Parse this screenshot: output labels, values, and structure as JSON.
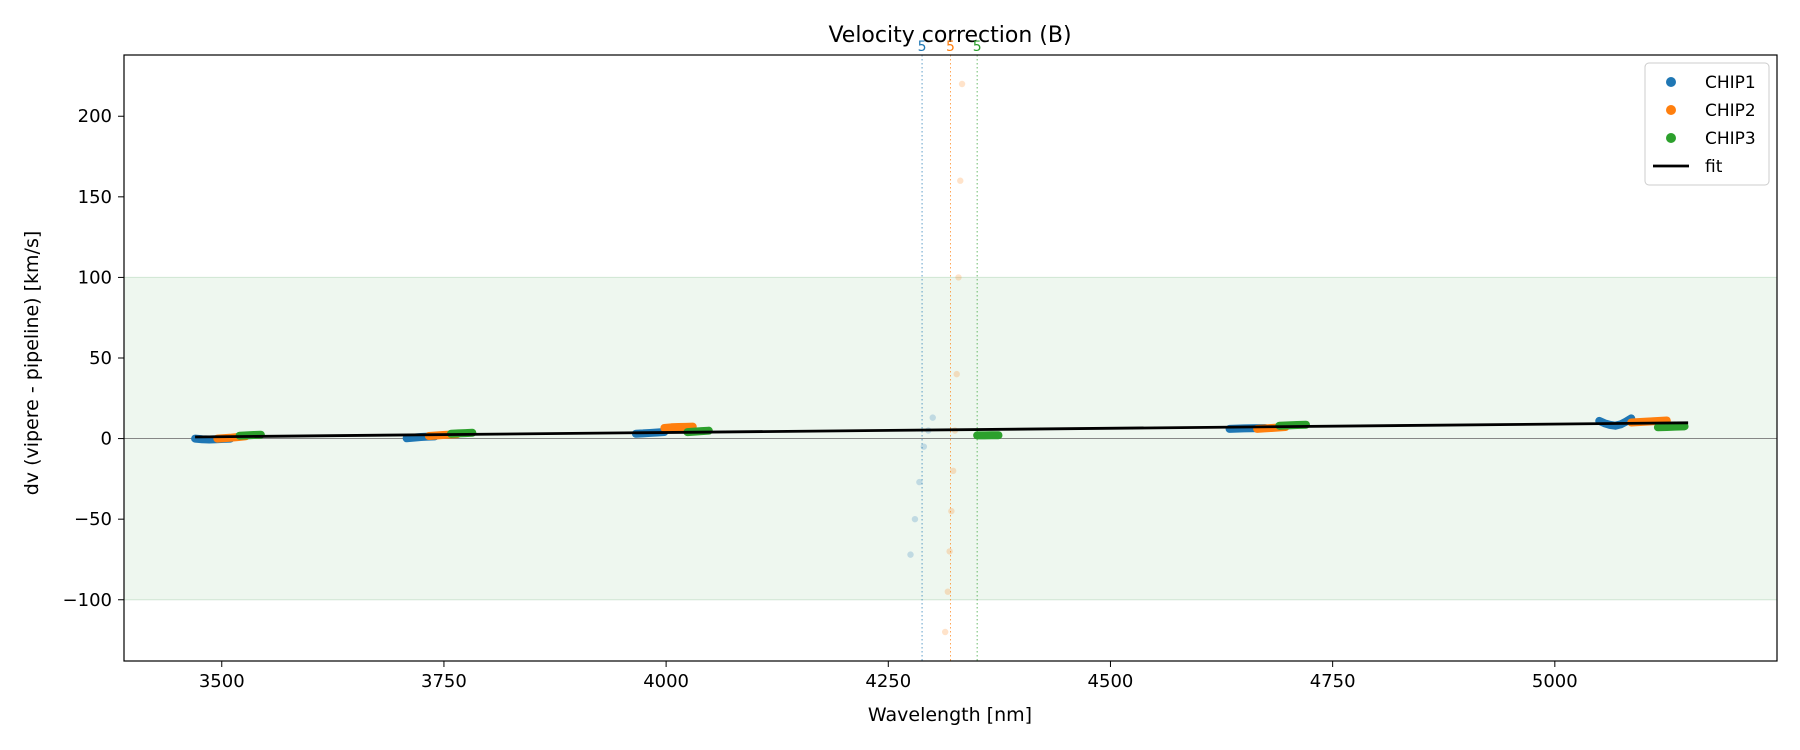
{
  "chart_data": {
    "type": "scatter",
    "title": "Velocity correction (B)",
    "xlabel": "Wavelength [nm]",
    "ylabel": "dv (vipere - pipeline) [km/s]",
    "xlim": [
      3390,
      5250
    ],
    "ylim": [
      -138,
      238
    ],
    "xticks": [
      3500,
      3750,
      4000,
      4250,
      4500,
      4750,
      5000
    ],
    "yticks": [
      -100,
      -50,
      0,
      50,
      100,
      150,
      200
    ],
    "shaded_band": [
      -100,
      100
    ],
    "zero_line": 0,
    "grid": false,
    "legend_position": "top-right",
    "colors": {
      "CHIP1": "#1f77b4",
      "CHIP2": "#ff7f0e",
      "CHIP3": "#2ca02c",
      "fit": "#000000",
      "band": "#e8f4ea"
    },
    "series": [
      {
        "name": "CHIP1",
        "segments": [
          {
            "x": [
              3470,
              3478,
              3486,
              3494,
              3502,
              3510
            ],
            "y": [
              0.0,
              -0.4,
              -0.6,
              -0.4,
              -0.2,
              0.0
            ]
          },
          {
            "x": [
              3708,
              3716,
              3724,
              3732,
              3740
            ],
            "y": [
              0.2,
              0.6,
              1.0,
              1.2,
              1.4
            ]
          },
          {
            "x": [
              3966,
              3974,
              3982,
              3990,
              3998
            ],
            "y": [
              3.0,
              3.2,
              3.5,
              3.8,
              4.1
            ]
          },
          {
            "x": [
              4634,
              4642,
              4650,
              4658,
              4666,
              4674
            ],
            "y": [
              6.0,
              6.2,
              6.3,
              6.4,
              6.5,
              6.6
            ]
          },
          {
            "x": [
              5050,
              5056,
              5062,
              5068,
              5074,
              5080,
              5086
            ],
            "y": [
              11.0,
              9.5,
              8.5,
              8.0,
              8.8,
              10.5,
              12.5
            ]
          }
        ],
        "faded": {
          "x": [
            4275,
            4280,
            4285,
            4290,
            4295,
            4300
          ],
          "y": [
            -72,
            -50,
            -27,
            -5,
            5,
            13
          ]
        }
      },
      {
        "name": "CHIP2",
        "segments": [
          {
            "x": [
              3495,
              3503,
              3511,
              3519,
              3527
            ],
            "y": [
              0.0,
              0.3,
              0.6,
              1.0,
              1.4
            ]
          },
          {
            "x": [
              3733,
              3741,
              3749,
              3757,
              3765
            ],
            "y": [
              1.6,
              1.9,
              2.2,
              2.5,
              2.8
            ]
          },
          {
            "x": [
              3998,
              4006,
              4014,
              4022,
              4030
            ],
            "y": [
              6.6,
              7.0,
              7.2,
              7.3,
              7.4
            ]
          },
          {
            "x": [
              4665,
              4673,
              4681,
              4689,
              4697
            ],
            "y": [
              6.0,
              6.3,
              6.6,
              6.9,
              7.2
            ]
          },
          {
            "x": [
              5086,
              5096,
              5106,
              5116,
              5126
            ],
            "y": [
              10.0,
              10.3,
              10.6,
              10.9,
              11.2
            ]
          }
        ],
        "faded": {
          "x": [
            4314,
            4317,
            4319,
            4321,
            4323,
            4325,
            4327,
            4329,
            4331,
            4333
          ],
          "y": [
            -120,
            -95,
            -70,
            -45,
            -20,
            5,
            40,
            100,
            160,
            220
          ]
        }
      },
      {
        "name": "CHIP3",
        "segments": [
          {
            "x": [
              3520,
              3528,
              3536,
              3544
            ],
            "y": [
              1.8,
              2.0,
              2.2,
              2.4
            ]
          },
          {
            "x": [
              3758,
              3766,
              3774,
              3782
            ],
            "y": [
              3.0,
              3.2,
              3.4,
              3.6
            ]
          },
          {
            "x": [
              4024,
              4032,
              4040,
              4048
            ],
            "y": [
              4.0,
              4.3,
              4.6,
              4.9
            ]
          },
          {
            "x": [
              4350,
              4358,
              4366,
              4374
            ],
            "y": [
              2.0,
              2.0,
              2.1,
              2.1
            ]
          },
          {
            "x": [
              4690,
              4700,
              4710,
              4720
            ],
            "y": [
              8.0,
              8.2,
              8.4,
              8.6
            ]
          },
          {
            "x": [
              5116,
              5126,
              5136,
              5146
            ],
            "y": [
              7.0,
              7.2,
              7.4,
              7.6
            ]
          }
        ]
      }
    ],
    "fit": {
      "name": "fit",
      "x": [
        3470,
        5150
      ],
      "y": [
        1.0,
        9.8
      ]
    },
    "order_markers": [
      {
        "x": 4288,
        "label": "5",
        "series": "CHIP1"
      },
      {
        "x": 4320,
        "label": "5",
        "series": "CHIP2"
      },
      {
        "x": 4350,
        "label": "5",
        "series": "CHIP3"
      }
    ],
    "legend": [
      "CHIP1",
      "CHIP2",
      "CHIP3",
      "fit"
    ]
  }
}
